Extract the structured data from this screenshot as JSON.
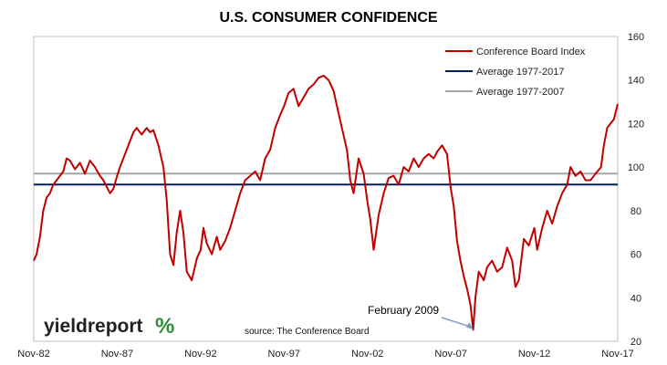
{
  "chart_data": {
    "type": "line",
    "title": "U.S. CONSUMER CONFIDENCE",
    "xlabel": "",
    "ylabel": "",
    "ylim": [
      20,
      160
    ],
    "yticks": [
      20,
      40,
      60,
      80,
      100,
      120,
      140,
      160
    ],
    "x_tick_labels": [
      "Nov-82",
      "Nov-87",
      "Nov-92",
      "Nov-97",
      "Nov-02",
      "Nov-07",
      "Nov-12",
      "Nov-17"
    ],
    "x_range": [
      1982.83,
      2017.83
    ],
    "grid": false,
    "legend_position": "top-right",
    "series": [
      {
        "name": "Conference Board Index",
        "color": "#c00000",
        "kind": "line",
        "points": [
          [
            1982.83,
            57
          ],
          [
            1983.0,
            60
          ],
          [
            1983.2,
            68
          ],
          [
            1983.4,
            80
          ],
          [
            1983.6,
            86
          ],
          [
            1983.8,
            88
          ],
          [
            1984.0,
            92
          ],
          [
            1984.3,
            95
          ],
          [
            1984.6,
            98
          ],
          [
            1984.8,
            104
          ],
          [
            1985.0,
            103
          ],
          [
            1985.3,
            99
          ],
          [
            1985.6,
            102
          ],
          [
            1985.9,
            97
          ],
          [
            1986.2,
            103
          ],
          [
            1986.5,
            100
          ],
          [
            1986.8,
            96
          ],
          [
            1987.0,
            94
          ],
          [
            1987.2,
            91
          ],
          [
            1987.4,
            88
          ],
          [
            1987.6,
            90
          ],
          [
            1987.83,
            96
          ],
          [
            1988.0,
            100
          ],
          [
            1988.3,
            106
          ],
          [
            1988.6,
            112
          ],
          [
            1988.8,
            116
          ],
          [
            1989.0,
            118
          ],
          [
            1989.3,
            115
          ],
          [
            1989.6,
            118
          ],
          [
            1989.8,
            116
          ],
          [
            1990.0,
            117
          ],
          [
            1990.3,
            110
          ],
          [
            1990.6,
            100
          ],
          [
            1990.8,
            85
          ],
          [
            1991.0,
            60
          ],
          [
            1991.2,
            55
          ],
          [
            1991.4,
            70
          ],
          [
            1991.6,
            80
          ],
          [
            1991.8,
            70
          ],
          [
            1992.0,
            52
          ],
          [
            1992.3,
            48
          ],
          [
            1992.6,
            58
          ],
          [
            1992.83,
            62
          ],
          [
            1993.0,
            72
          ],
          [
            1993.2,
            65
          ],
          [
            1993.5,
            60
          ],
          [
            1993.8,
            68
          ],
          [
            1994.0,
            62
          ],
          [
            1994.3,
            66
          ],
          [
            1994.6,
            72
          ],
          [
            1994.9,
            80
          ],
          [
            1995.2,
            88
          ],
          [
            1995.5,
            94
          ],
          [
            1995.8,
            96
          ],
          [
            1996.1,
            98
          ],
          [
            1996.4,
            94
          ],
          [
            1996.7,
            104
          ],
          [
            1997.0,
            108
          ],
          [
            1997.3,
            118
          ],
          [
            1997.6,
            124
          ],
          [
            1997.83,
            128
          ],
          [
            1998.1,
            134
          ],
          [
            1998.4,
            136
          ],
          [
            1998.7,
            128
          ],
          [
            1999.0,
            132
          ],
          [
            1999.3,
            136
          ],
          [
            1999.6,
            138
          ],
          [
            1999.9,
            141
          ],
          [
            2000.2,
            142
          ],
          [
            2000.5,
            140
          ],
          [
            2000.8,
            135
          ],
          [
            2001.0,
            128
          ],
          [
            2001.3,
            118
          ],
          [
            2001.6,
            108
          ],
          [
            2001.8,
            94
          ],
          [
            2002.0,
            88
          ],
          [
            2002.3,
            104
          ],
          [
            2002.6,
            97
          ],
          [
            2002.83,
            84
          ],
          [
            2003.0,
            76
          ],
          [
            2003.2,
            62
          ],
          [
            2003.5,
            78
          ],
          [
            2003.8,
            88
          ],
          [
            2004.1,
            95
          ],
          [
            2004.4,
            96
          ],
          [
            2004.7,
            92
          ],
          [
            2005.0,
            100
          ],
          [
            2005.3,
            98
          ],
          [
            2005.6,
            104
          ],
          [
            2005.9,
            100
          ],
          [
            2006.2,
            104
          ],
          [
            2006.5,
            106
          ],
          [
            2006.8,
            104
          ],
          [
            2007.0,
            107
          ],
          [
            2007.3,
            110
          ],
          [
            2007.6,
            106
          ],
          [
            2007.83,
            90
          ],
          [
            2008.0,
            82
          ],
          [
            2008.2,
            66
          ],
          [
            2008.4,
            57
          ],
          [
            2008.6,
            50
          ],
          [
            2008.8,
            44
          ],
          [
            2009.0,
            37
          ],
          [
            2009.17,
            25.3
          ],
          [
            2009.3,
            40
          ],
          [
            2009.5,
            52
          ],
          [
            2009.8,
            48
          ],
          [
            2010.0,
            54
          ],
          [
            2010.3,
            57
          ],
          [
            2010.6,
            52
          ],
          [
            2010.9,
            54
          ],
          [
            2011.2,
            63
          ],
          [
            2011.5,
            57
          ],
          [
            2011.7,
            45
          ],
          [
            2011.9,
            48
          ],
          [
            2012.2,
            67
          ],
          [
            2012.5,
            64
          ],
          [
            2012.83,
            72
          ],
          [
            2013.0,
            62
          ],
          [
            2013.3,
            72
          ],
          [
            2013.6,
            80
          ],
          [
            2013.9,
            74
          ],
          [
            2014.2,
            82
          ],
          [
            2014.5,
            88
          ],
          [
            2014.8,
            92
          ],
          [
            2015.0,
            100
          ],
          [
            2015.3,
            96
          ],
          [
            2015.6,
            98
          ],
          [
            2015.9,
            94
          ],
          [
            2016.2,
            94
          ],
          [
            2016.5,
            97
          ],
          [
            2016.83,
            100
          ],
          [
            2017.0,
            110
          ],
          [
            2017.2,
            118
          ],
          [
            2017.4,
            120
          ],
          [
            2017.6,
            122
          ],
          [
            2017.83,
            129
          ]
        ]
      },
      {
        "name": "Average 1977-2017",
        "color": "#002060",
        "kind": "hline",
        "value": 92
      },
      {
        "name": "Average 1977-2007",
        "color": "#a6a6a6",
        "kind": "hline",
        "value": 97
      }
    ],
    "annotations": [
      {
        "text": "February 2009",
        "x": 2009.17,
        "y": 25.3
      }
    ],
    "source_note": "source: The Conference Board",
    "logo": {
      "text": "yieldreport",
      "symbol": "%"
    }
  }
}
